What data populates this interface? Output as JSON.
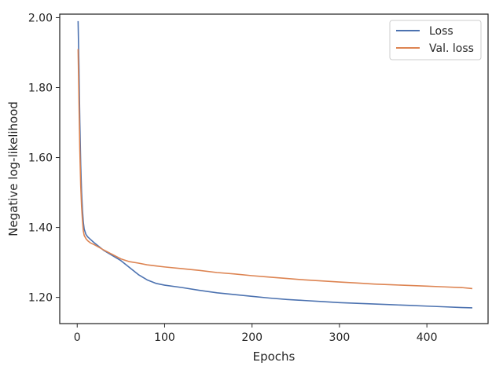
{
  "chart_data": {
    "type": "line",
    "title": "",
    "xlabel": "Epochs",
    "ylabel": "Negative log-likelihood",
    "xlim": [
      -20,
      470
    ],
    "ylim": [
      1.125,
      2.01
    ],
    "xticks": [
      0,
      100,
      200,
      300,
      400
    ],
    "xtick_labels": [
      "0",
      "100",
      "200",
      "300",
      "400"
    ],
    "yticks": [
      1.2,
      1.4,
      1.6,
      1.8,
      2.0
    ],
    "ytick_labels": [
      "1.20",
      "1.40",
      "1.60",
      "1.80",
      "2.00"
    ],
    "grid": false,
    "legend_position": "top-right",
    "series": [
      {
        "name": "Loss",
        "color": "#4c72b0",
        "x": [
          1,
          2,
          3,
          4,
          5,
          6,
          7,
          8,
          10,
          12,
          15,
          20,
          25,
          30,
          40,
          50,
          60,
          70,
          80,
          90,
          100,
          120,
          140,
          160,
          180,
          200,
          220,
          240,
          260,
          280,
          300,
          320,
          340,
          360,
          380,
          400,
          420,
          440,
          452
        ],
        "y": [
          1.99,
          1.86,
          1.7,
          1.58,
          1.5,
          1.45,
          1.415,
          1.395,
          1.38,
          1.373,
          1.366,
          1.355,
          1.345,
          1.335,
          1.32,
          1.305,
          1.285,
          1.265,
          1.25,
          1.24,
          1.235,
          1.228,
          1.22,
          1.213,
          1.208,
          1.203,
          1.198,
          1.194,
          1.191,
          1.188,
          1.185,
          1.183,
          1.181,
          1.179,
          1.177,
          1.175,
          1.173,
          1.171,
          1.17
        ]
      },
      {
        "name": "Val. loss",
        "color": "#dd8452",
        "x": [
          1,
          2,
          3,
          4,
          5,
          6,
          7,
          8,
          10,
          12,
          15,
          20,
          25,
          30,
          40,
          50,
          60,
          70,
          80,
          90,
          100,
          120,
          140,
          160,
          180,
          200,
          220,
          240,
          260,
          280,
          300,
          320,
          340,
          360,
          380,
          400,
          420,
          440,
          452
        ],
        "y": [
          1.91,
          1.76,
          1.62,
          1.52,
          1.46,
          1.42,
          1.39,
          1.377,
          1.368,
          1.362,
          1.356,
          1.35,
          1.343,
          1.336,
          1.323,
          1.31,
          1.302,
          1.298,
          1.293,
          1.29,
          1.287,
          1.282,
          1.277,
          1.271,
          1.267,
          1.262,
          1.258,
          1.254,
          1.25,
          1.247,
          1.244,
          1.241,
          1.238,
          1.236,
          1.234,
          1.232,
          1.23,
          1.228,
          1.225
        ]
      }
    ]
  }
}
